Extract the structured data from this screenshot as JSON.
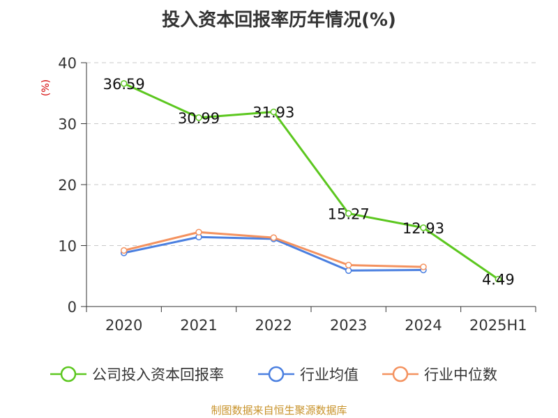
{
  "title": "投入资本回报率历年情况(%)",
  "footer": "制图数据来自恒生聚源数据库",
  "chart_data": {
    "type": "line",
    "title": "投入资本回报率历年情况(%)",
    "ylabel": "(%)",
    "xlabel": "",
    "categories": [
      "2020",
      "2021",
      "2022",
      "2023",
      "2024",
      "2025H1"
    ],
    "ylim": [
      0,
      40
    ],
    "yticks": [
      0,
      10,
      20,
      30,
      40
    ],
    "grid": true,
    "legend_position": "bottom",
    "series": [
      {
        "name": "公司投入资本回报率",
        "color": "#5cc71f",
        "values": [
          36.59,
          30.99,
          31.93,
          15.27,
          12.93,
          4.49
        ],
        "labels": [
          "36.59",
          "30.99",
          "31.93",
          "15.27",
          "12.93",
          "4.49"
        ]
      },
      {
        "name": "行业均值",
        "color": "#4a7fe0",
        "values": [
          8.8,
          11.4,
          11.1,
          5.9,
          6.0,
          null
        ]
      },
      {
        "name": "行业中位数",
        "color": "#f4925f",
        "values": [
          9.2,
          12.2,
          11.3,
          6.8,
          6.5,
          null
        ]
      }
    ]
  }
}
